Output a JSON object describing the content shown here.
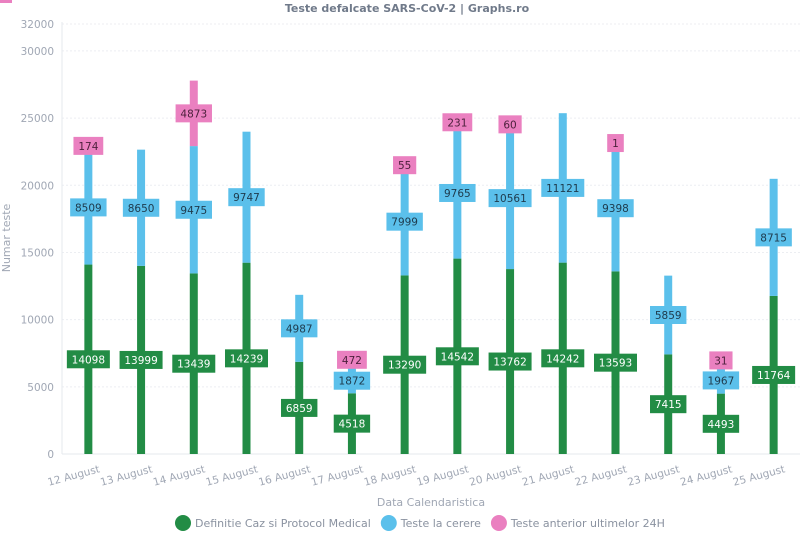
{
  "chart_data": {
    "type": "bar",
    "stacked": true,
    "title": "Teste defalcate SARS-CoV-2 | Graphs.ro",
    "xlabel": "Data Calendaristica",
    "ylabel": "Numar teste",
    "ylim": [
      0,
      32000
    ],
    "yticks": [
      0,
      5000,
      10000,
      15000,
      20000,
      25000,
      30000,
      32000
    ],
    "grid": true,
    "legend_position": "bottom-center",
    "categories": [
      "12 August",
      "13 August",
      "14 August",
      "15 August",
      "16 August",
      "17 August",
      "18 August",
      "19 August",
      "20 August",
      "21 August",
      "22 August",
      "23 August",
      "24 August",
      "25 August"
    ],
    "series": [
      {
        "name": "Definitie Caz si Protocol Medical",
        "color": "#228c45",
        "label_text_color": "#ffffff",
        "values": [
          14098,
          13999,
          13439,
          14239,
          6859,
          4518,
          13290,
          14542,
          13762,
          14242,
          13593,
          7415,
          4493,
          11764
        ]
      },
      {
        "name": "Teste la cerere",
        "color": "#5bc0eb",
        "label_text_color": "#1e3a4c",
        "values": [
          8509,
          8650,
          9475,
          9747,
          4987,
          1872,
          7999,
          9765,
          10561,
          11121,
          9398,
          5859,
          1967,
          8715
        ]
      },
      {
        "name": "Teste anterior ultimelor 24H",
        "color": "#ea80c0",
        "label_text_color": "#4a1f3a",
        "values": [
          174,
          null,
          4873,
          null,
          null,
          472,
          55,
          231,
          60,
          null,
          1,
          null,
          31,
          null
        ]
      }
    ]
  }
}
